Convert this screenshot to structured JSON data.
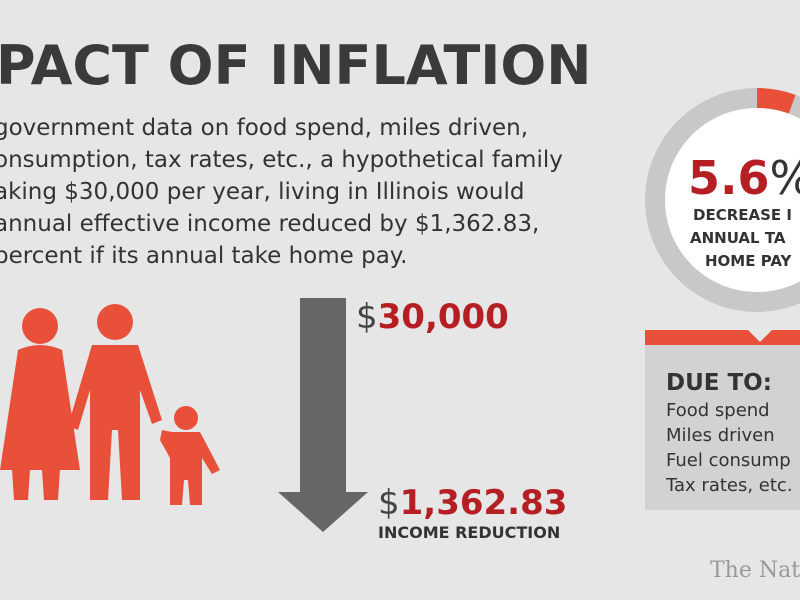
{
  "header": {
    "title": "PACT OF INFLATION"
  },
  "body": {
    "lines": [
      "government data on food spend, miles driven,",
      "onsumption, tax rates, etc., a hypothetical family",
      "aking $30,000 per year, living in Illinois would",
      "annual effective income reduced by $1,362.83,",
      "percent if its annual take home pay."
    ]
  },
  "start_amount": {
    "currency": "$",
    "number": "30,000"
  },
  "reduction": {
    "currency": "$",
    "number": "1,362.83",
    "label": "INCOME REDUCTION"
  },
  "donut": {
    "value": 5.6,
    "unit": "%",
    "color": "#e8503a",
    "lines": [
      "DECREASE I",
      "ANNUAL TA",
      "HOME PAY"
    ]
  },
  "due_to": {
    "title": "DUE TO:",
    "items": [
      "Food spend",
      "Miles driven",
      "Fuel consump",
      "Tax rates, etc."
    ]
  },
  "watermark": "The Nati"
}
